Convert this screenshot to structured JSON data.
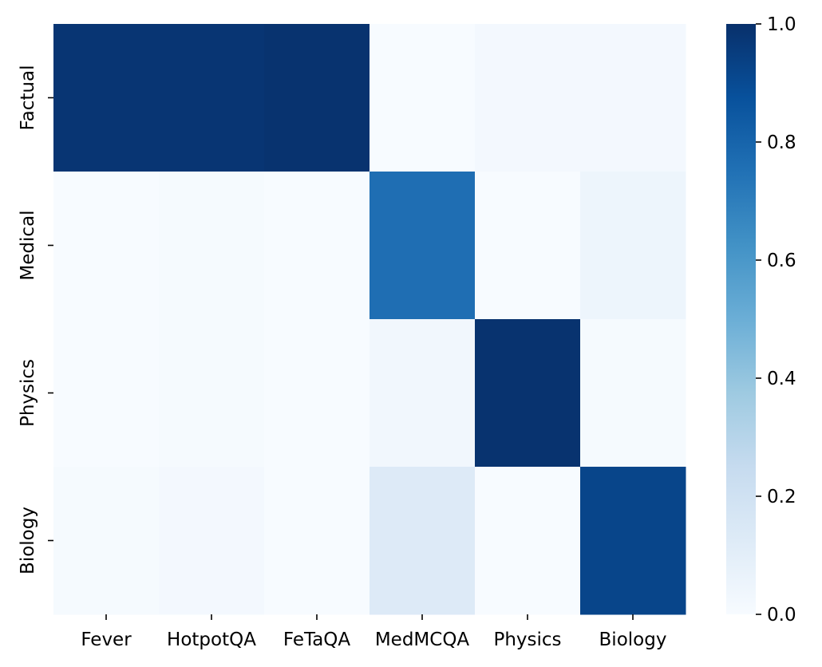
{
  "chart_data": {
    "type": "heatmap",
    "x_categories": [
      "Fever",
      "HotpotQA",
      "FeTaQA",
      "MedMCQA",
      "Physics",
      "Biology"
    ],
    "y_categories": [
      "Factual",
      "Medical",
      "Physics",
      "Biology"
    ],
    "values": [
      [
        0.98,
        0.98,
        0.99,
        0.0,
        0.02,
        0.02
      ],
      [
        0.0,
        0.01,
        0.0,
        0.76,
        0.0,
        0.05
      ],
      [
        0.0,
        0.01,
        0.0,
        0.03,
        0.99,
        0.01
      ],
      [
        0.01,
        0.02,
        0.0,
        0.13,
        0.0,
        0.92
      ]
    ],
    "title": "",
    "xlabel": "",
    "ylabel": "",
    "colorbar": {
      "range": [
        0.0,
        1.0
      ],
      "ticks": [
        0.0,
        0.2,
        0.4,
        0.6,
        0.8,
        1.0
      ],
      "tick_labels": [
        "0.0",
        "0.2",
        "0.4",
        "0.6",
        "0.8",
        "1.0"
      ],
      "colormap": "Blues",
      "stops": [
        "#f7fbff",
        "#deebf7",
        "#c6dbef",
        "#9ecae1",
        "#6baed6",
        "#4292c6",
        "#2171b5",
        "#08519c",
        "#08306b"
      ]
    },
    "grid": false
  }
}
